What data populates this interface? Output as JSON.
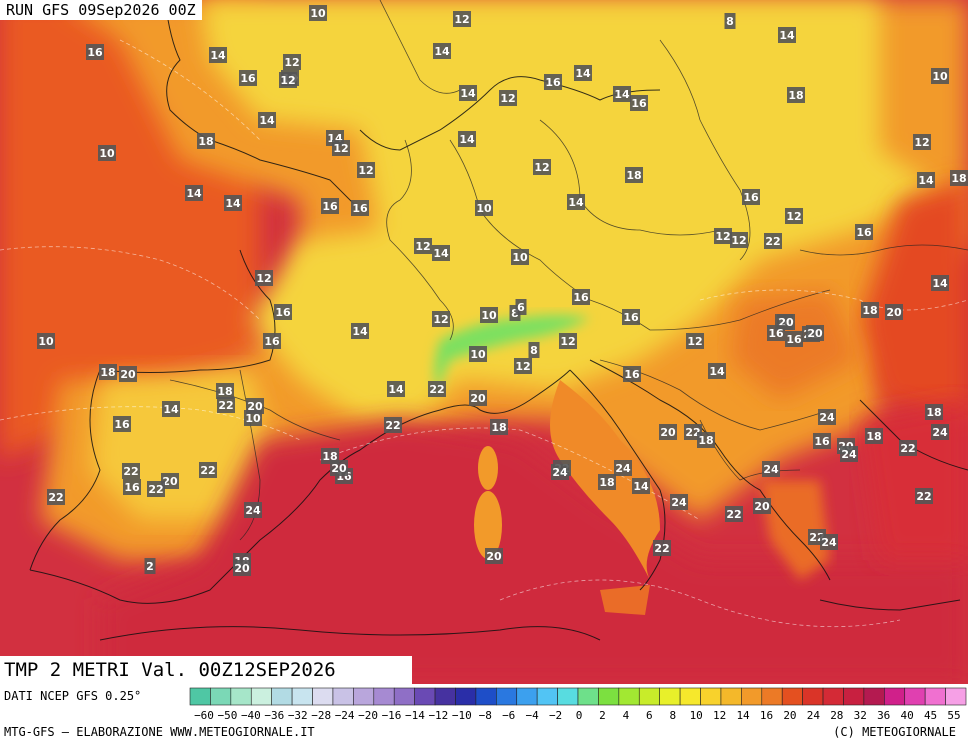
{
  "header": {
    "run_label": "RUN GFS 09Sep2026 00Z"
  },
  "map": {
    "title": "TMP 2 METRI Val. 00Z12SEP2026",
    "temperature_labels": [
      "10",
      "12",
      "8",
      "16",
      "14",
      "14",
      "12",
      "14",
      "10",
      "10",
      "16",
      "14",
      "12",
      "16",
      "14",
      "12",
      "14",
      "16",
      "18",
      "14",
      "18",
      "14",
      "12",
      "14",
      "12",
      "10",
      "12",
      "12",
      "18",
      "18",
      "14",
      "14",
      "14",
      "16",
      "16",
      "14",
      "16",
      "10",
      "12",
      "12",
      "14",
      "12",
      "12",
      "22",
      "16",
      "12",
      "10",
      "14",
      "16",
      "16",
      "18",
      "20",
      "16",
      "12",
      "10",
      "8",
      "14",
      "6",
      "10",
      "12",
      "12",
      "8",
      "14",
      "20",
      "16",
      "16",
      "22",
      "20",
      "10",
      "16",
      "18",
      "20",
      "12",
      "16",
      "14",
      "14",
      "18",
      "20",
      "10",
      "20",
      "22",
      "24",
      "18",
      "22",
      "14",
      "16",
      "18",
      "22",
      "22",
      "20",
      "18",
      "16",
      "18",
      "20",
      "22",
      "24",
      "24",
      "18",
      "16",
      "20",
      "22",
      "22",
      "24",
      "22",
      "24",
      "20",
      "16",
      "22",
      "24",
      "14",
      "22",
      "18",
      "24",
      "22",
      "22",
      "20",
      "24",
      "22",
      "24",
      "20",
      "22",
      "18",
      "2",
      "20"
    ],
    "colors": {
      "cool": "#f5e060",
      "warm": "#f29a2a",
      "hot": "#e45020",
      "very_hot": "#d42a36",
      "sea": "#cf2b3c",
      "alps": "#7be060"
    }
  },
  "legend": {
    "source_label": "DATI NCEP GFS 0.25°",
    "unit_label": "°",
    "ticks": [
      "−60",
      "−50",
      "−40",
      "−36",
      "−32",
      "−28",
      "−24",
      "−20",
      "−16",
      "−14",
      "−12",
      "−10",
      "−8",
      "−6",
      "−4",
      "−2",
      "0",
      "2",
      "4",
      "6",
      "8",
      "10",
      "12",
      "14",
      "16",
      "20",
      "24",
      "28",
      "32",
      "36",
      "40",
      "45",
      "55"
    ],
    "colors": [
      "#4fc7a4",
      "#7bd8b6",
      "#a6e6c9",
      "#cbf0df",
      "#b2dbe4",
      "#c8e4ef",
      "#dcdcf0",
      "#c9c2e6",
      "#b9a6dc",
      "#a68ad2",
      "#8f6fc6",
      "#6a4ab4",
      "#4632a0",
      "#2a2ea8",
      "#1e4ec8",
      "#2a78e0",
      "#3ca0ee",
      "#52c4f4",
      "#58dce0",
      "#6ee08a",
      "#7ce040",
      "#a2e832",
      "#c8ec2a",
      "#e8f02a",
      "#f6e82c",
      "#f8d22c",
      "#f4b82a",
      "#f29a2a",
      "#ec7a26",
      "#e45020",
      "#da3428",
      "#d42a36",
      "#c82040",
      "#b41a50",
      "#d0208a",
      "#e040b0",
      "#f070d0",
      "#f6a0e6"
    ]
  },
  "footer": {
    "left": "MTG-GFS — ELABORAZIONE WWW.METEOGIORNALE.IT",
    "right": "(C) METEOGIORNALE"
  }
}
